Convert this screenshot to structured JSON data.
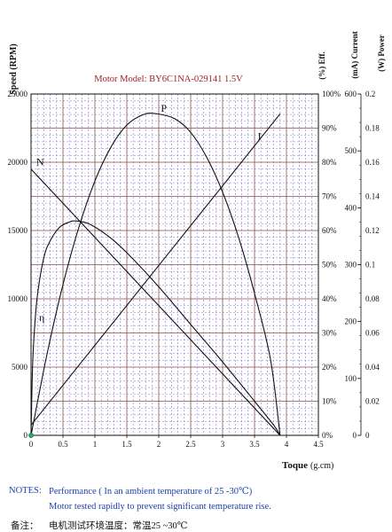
{
  "chart_data": {
    "type": "line",
    "title": "Motor Model: BY6C1NA-029141  1.5V",
    "xlabel": "Toque",
    "xunit": "(g.cm)",
    "xlim": [
      0,
      4.5
    ],
    "x_ticks": [
      "0",
      "0.5",
      "1",
      "1.5",
      "2",
      "2.5",
      "3",
      "3.5",
      "4",
      "4.5"
    ],
    "grid": true,
    "axes": [
      {
        "id": "speed",
        "label": "Speed (RPM)",
        "ylim": [
          0,
          25000
        ],
        "ticks": [
          "0",
          "5000",
          "10000",
          "15000",
          "20000",
          "25000"
        ]
      },
      {
        "id": "eff",
        "label": "(%) Eff.",
        "ylim": [
          0,
          100
        ],
        "ticks": [
          "0%",
          "10%",
          "20%",
          "30%",
          "40%",
          "50%",
          "60%",
          "70%",
          "80%",
          "90%",
          "100%"
        ]
      },
      {
        "id": "current",
        "label": "(mA) Current",
        "ylim": [
          0,
          600
        ],
        "ticks": [
          "0",
          "100",
          "200",
          "300",
          "400",
          "500",
          "600"
        ]
      },
      {
        "id": "power",
        "label": "(W) Power",
        "ylim": [
          0,
          0.2
        ],
        "ticks": [
          "0",
          "0.02",
          "0.04",
          "0.06",
          "0.08",
          "0.1",
          "0.12",
          "0.14",
          "0.16",
          "0.18",
          "0.2"
        ]
      }
    ],
    "series": [
      {
        "name": "N",
        "axis": "speed",
        "x": [
          0,
          3.9
        ],
        "y": [
          19500,
          0
        ]
      },
      {
        "name": "I",
        "axis": "current",
        "x": [
          0,
          3.9
        ],
        "y": [
          18,
          565
        ]
      },
      {
        "name": "P",
        "axis": "power",
        "x": [
          0,
          0.25,
          0.5,
          0.75,
          1.0,
          1.25,
          1.5,
          1.75,
          1.95,
          2.25,
          2.5,
          2.75,
          3.0,
          3.25,
          3.5,
          3.75,
          3.9
        ],
        "y": [
          0,
          0.0475,
          0.0883,
          0.122,
          0.149,
          0.1688,
          0.1818,
          0.1878,
          0.1885,
          0.1855,
          0.1775,
          0.163,
          0.1425,
          0.116,
          0.0832,
          0.0445,
          0
        ]
      },
      {
        "name": "η",
        "axis": "eff",
        "x": [
          0,
          0.02,
          0.05,
          0.1,
          0.2,
          0.3,
          0.45,
          0.6,
          0.7,
          0.9,
          1.2,
          1.5,
          2.0,
          2.5,
          3.0,
          3.5,
          3.8,
          3.9
        ],
        "y": [
          0,
          18,
          30,
          41,
          52,
          57,
          61,
          62.5,
          62.8,
          62,
          58.5,
          53.5,
          43.5,
          32.5,
          21.5,
          10,
          3,
          0
        ]
      }
    ]
  },
  "notes": {
    "notes_label": "NOTES:",
    "line1": "Performance ( In an ambient temperature of 25 -30℃)",
    "line2": "Motor tested rapidly to prevent significant temperature rise.",
    "cn_label": "备注：",
    "cn_text": "电机测试环境温度：常温25 ~30℃"
  }
}
